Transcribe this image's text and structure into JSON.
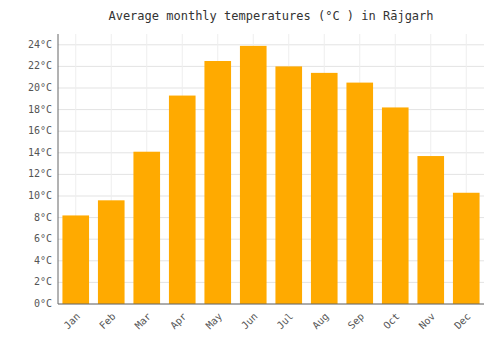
{
  "chart_data": {
    "type": "bar",
    "title": "Average monthly temperatures (°C ) in Rājgarh",
    "categories": [
      "Jan",
      "Feb",
      "Mar",
      "Apr",
      "May",
      "Jun",
      "Jul",
      "Aug",
      "Sep",
      "Oct",
      "Nov",
      "Dec"
    ],
    "values": [
      8.2,
      9.6,
      14.1,
      19.3,
      22.5,
      23.9,
      22.0,
      21.4,
      20.5,
      18.2,
      13.7,
      10.3
    ],
    "color": "#FFAA00",
    "ylim": [
      0,
      25
    ],
    "yticks": [
      {
        "value": 0,
        "label": "0°C"
      },
      {
        "value": 2,
        "label": "2°C"
      },
      {
        "value": 4,
        "label": "4°C"
      },
      {
        "value": 6,
        "label": "6°C"
      },
      {
        "value": 8,
        "label": "8°C"
      },
      {
        "value": 10,
        "label": "10°C"
      },
      {
        "value": 12,
        "label": "12°C"
      },
      {
        "value": 14,
        "label": "14°C"
      },
      {
        "value": 16,
        "label": "16°C"
      },
      {
        "value": 18,
        "label": "18°C"
      },
      {
        "value": 20,
        "label": "20°C"
      },
      {
        "value": 22,
        "label": "22°C"
      },
      {
        "value": 24,
        "label": "24°C"
      }
    ],
    "grid": true
  }
}
